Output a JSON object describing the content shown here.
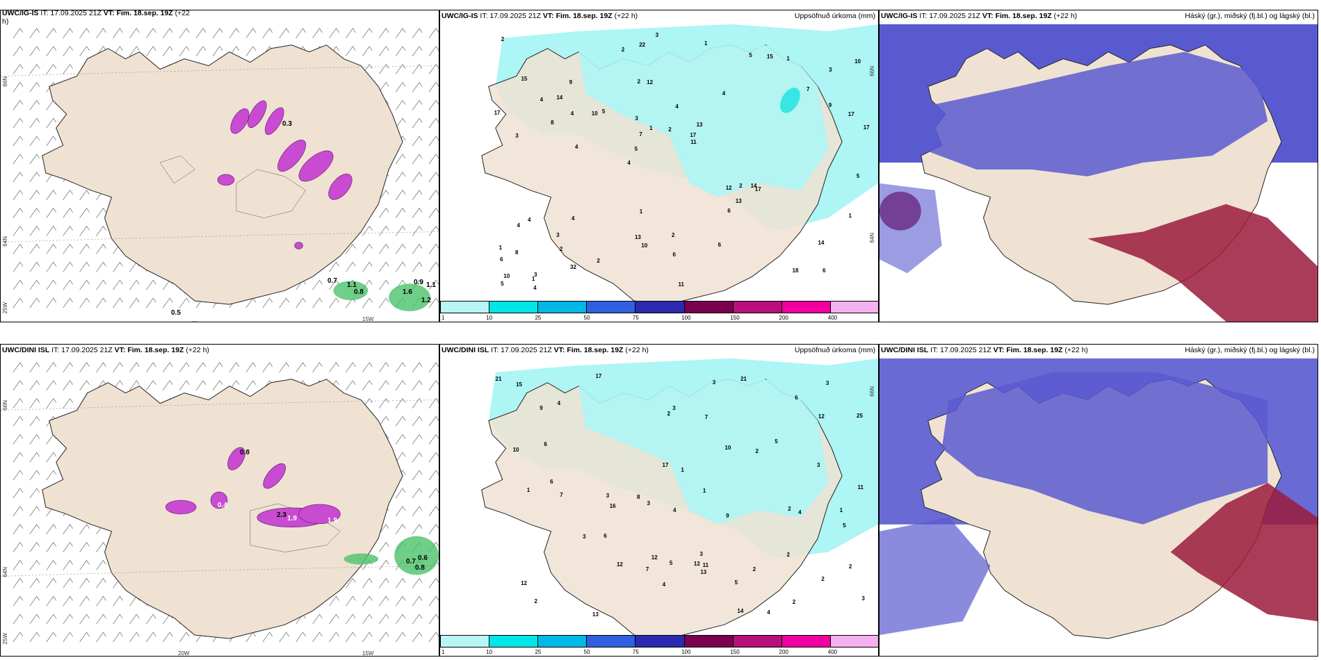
{
  "colors": {
    "land": "#efe2d2",
    "coast": "#222222",
    "precip_light": "#aef5f5",
    "precip_mid": "#39e6e6",
    "green": "#4cc36b",
    "magenta": "#c84bd1",
    "cloud_high": "#5a5ad0",
    "cloud_low": "#9a1b3c"
  },
  "panels": {
    "wind_top": {
      "title_bold": "UWC/IG-IS",
      "title_rest": " IT: 17.09.2025 21Z ",
      "vt_bold": "VT: Fim. 18.sep. 19Z",
      "vt_rest": " (+22",
      "line2": "h)",
      "lat_labels": [
        "66N",
        "64N",
        "25W"
      ],
      "lon_labels": [
        "15W"
      ],
      "values": [
        "0.3",
        "0.7",
        "1.1",
        "0.8",
        "0.9",
        "1.1",
        "1.6",
        "1.2",
        "0.5"
      ]
    },
    "precip_top": {
      "title_bold": "UWC/IG-IS",
      "title_rest": " IT: 17.09.2025 21Z ",
      "vt_bold": "VT: Fim. 18.sep. 19Z",
      "vt_rest": " (+22 h)",
      "right": "Uppsöfnuð úrkoma (mm)",
      "lat_labels": [
        "66N",
        "64N"
      ],
      "numbers": [
        "6",
        "3",
        "3",
        "4",
        "4",
        "3",
        "2",
        "4",
        "4",
        "5",
        "6",
        "2",
        "12",
        "13",
        "17",
        "15",
        "22",
        "17",
        "12",
        "9",
        "5",
        "13",
        "7",
        "9",
        "5",
        "4",
        "18",
        "14",
        "14",
        "11",
        "10",
        "8",
        "6",
        "32",
        "17",
        "17",
        "10",
        "10",
        "11",
        "4",
        "7",
        "10",
        "13",
        "6",
        "3",
        "4",
        "5",
        "2",
        "1",
        "3",
        "4",
        "17",
        "14",
        "15",
        "1",
        "1",
        "2",
        "1",
        "1",
        "1",
        "2",
        "2",
        "4",
        "1",
        "2",
        "4",
        "5",
        "3",
        "6",
        "2",
        "8"
      ]
    },
    "cloud_top": {
      "title_bold": "UWC/IG-IS",
      "title_rest": " IT: 17.09.2025 21Z ",
      "vt_bold": "VT: Fim. 18.sep. 19Z",
      "vt_rest": " (+22 h)",
      "right": "Háský (gr.), miðský (fj.bl.) og lágský (bl.)"
    },
    "wind_bottom": {
      "title_bold": "UWC/DINI ISL",
      "title_rest": " IT: 17.09.2025 21Z ",
      "vt_bold": "VT: Fim. 18.sep. 19Z",
      "vt_rest": " (+22 h)",
      "lat_labels": [
        "66N",
        "64N",
        "25W"
      ],
      "lon_labels": [
        "20W",
        "15W"
      ],
      "values": [
        "0.8",
        "0.4",
        "2.3",
        "1.9",
        "1.9",
        "0.7",
        "0.6",
        "0.8"
      ]
    },
    "precip_bottom": {
      "title_bold": "UWC/DINI ISL",
      "title_rest": " IT: 17.09.2025 21Z ",
      "vt_bold": "VT: Fim. 18.sep. 19Z",
      "vt_rest": " (+22 h)",
      "right": "Uppsöfnuð úrkoma (mm)",
      "lat_labels": [
        "66N"
      ],
      "numbers": [
        "2",
        "2",
        "3",
        "3",
        "2",
        "2",
        "4",
        "3",
        "4",
        "5",
        "6",
        "3",
        "21",
        "12",
        "12",
        "2",
        "2",
        "12",
        "12",
        "17",
        "25",
        "14",
        "6",
        "15",
        "7",
        "3",
        "3",
        "5",
        "16",
        "13",
        "11",
        "11",
        "10",
        "9",
        "7",
        "21",
        "17",
        "13",
        "10",
        "8",
        "7",
        "1",
        "5",
        "3",
        "4",
        "3",
        "6",
        "5",
        "9",
        "12",
        "4",
        "2",
        "1",
        "4",
        "3",
        "1",
        "6",
        "2",
        "1",
        "2"
      ]
    },
    "cloud_bottom": {
      "title_bold": "UWC/DINI ISL",
      "title_rest": " IT: 17.09.2025 21Z ",
      "vt_bold": "VT: Fim. 18.sep. 19Z",
      "vt_rest": " (+22 h)",
      "right": "Háský (gr.), miðský (fj.bl.) og lágský (bl.)"
    }
  },
  "colorbar": {
    "labels": [
      "1",
      "10",
      "25",
      "50",
      "75",
      "100",
      "150",
      "200",
      "400"
    ],
    "colors": [
      "#b8f6f6",
      "#00e6e6",
      "#00b8e6",
      "#3060e0",
      "#2a2ab0",
      "#7a0050",
      "#b8107a",
      "#f000a0",
      "#f5b0f0"
    ]
  }
}
